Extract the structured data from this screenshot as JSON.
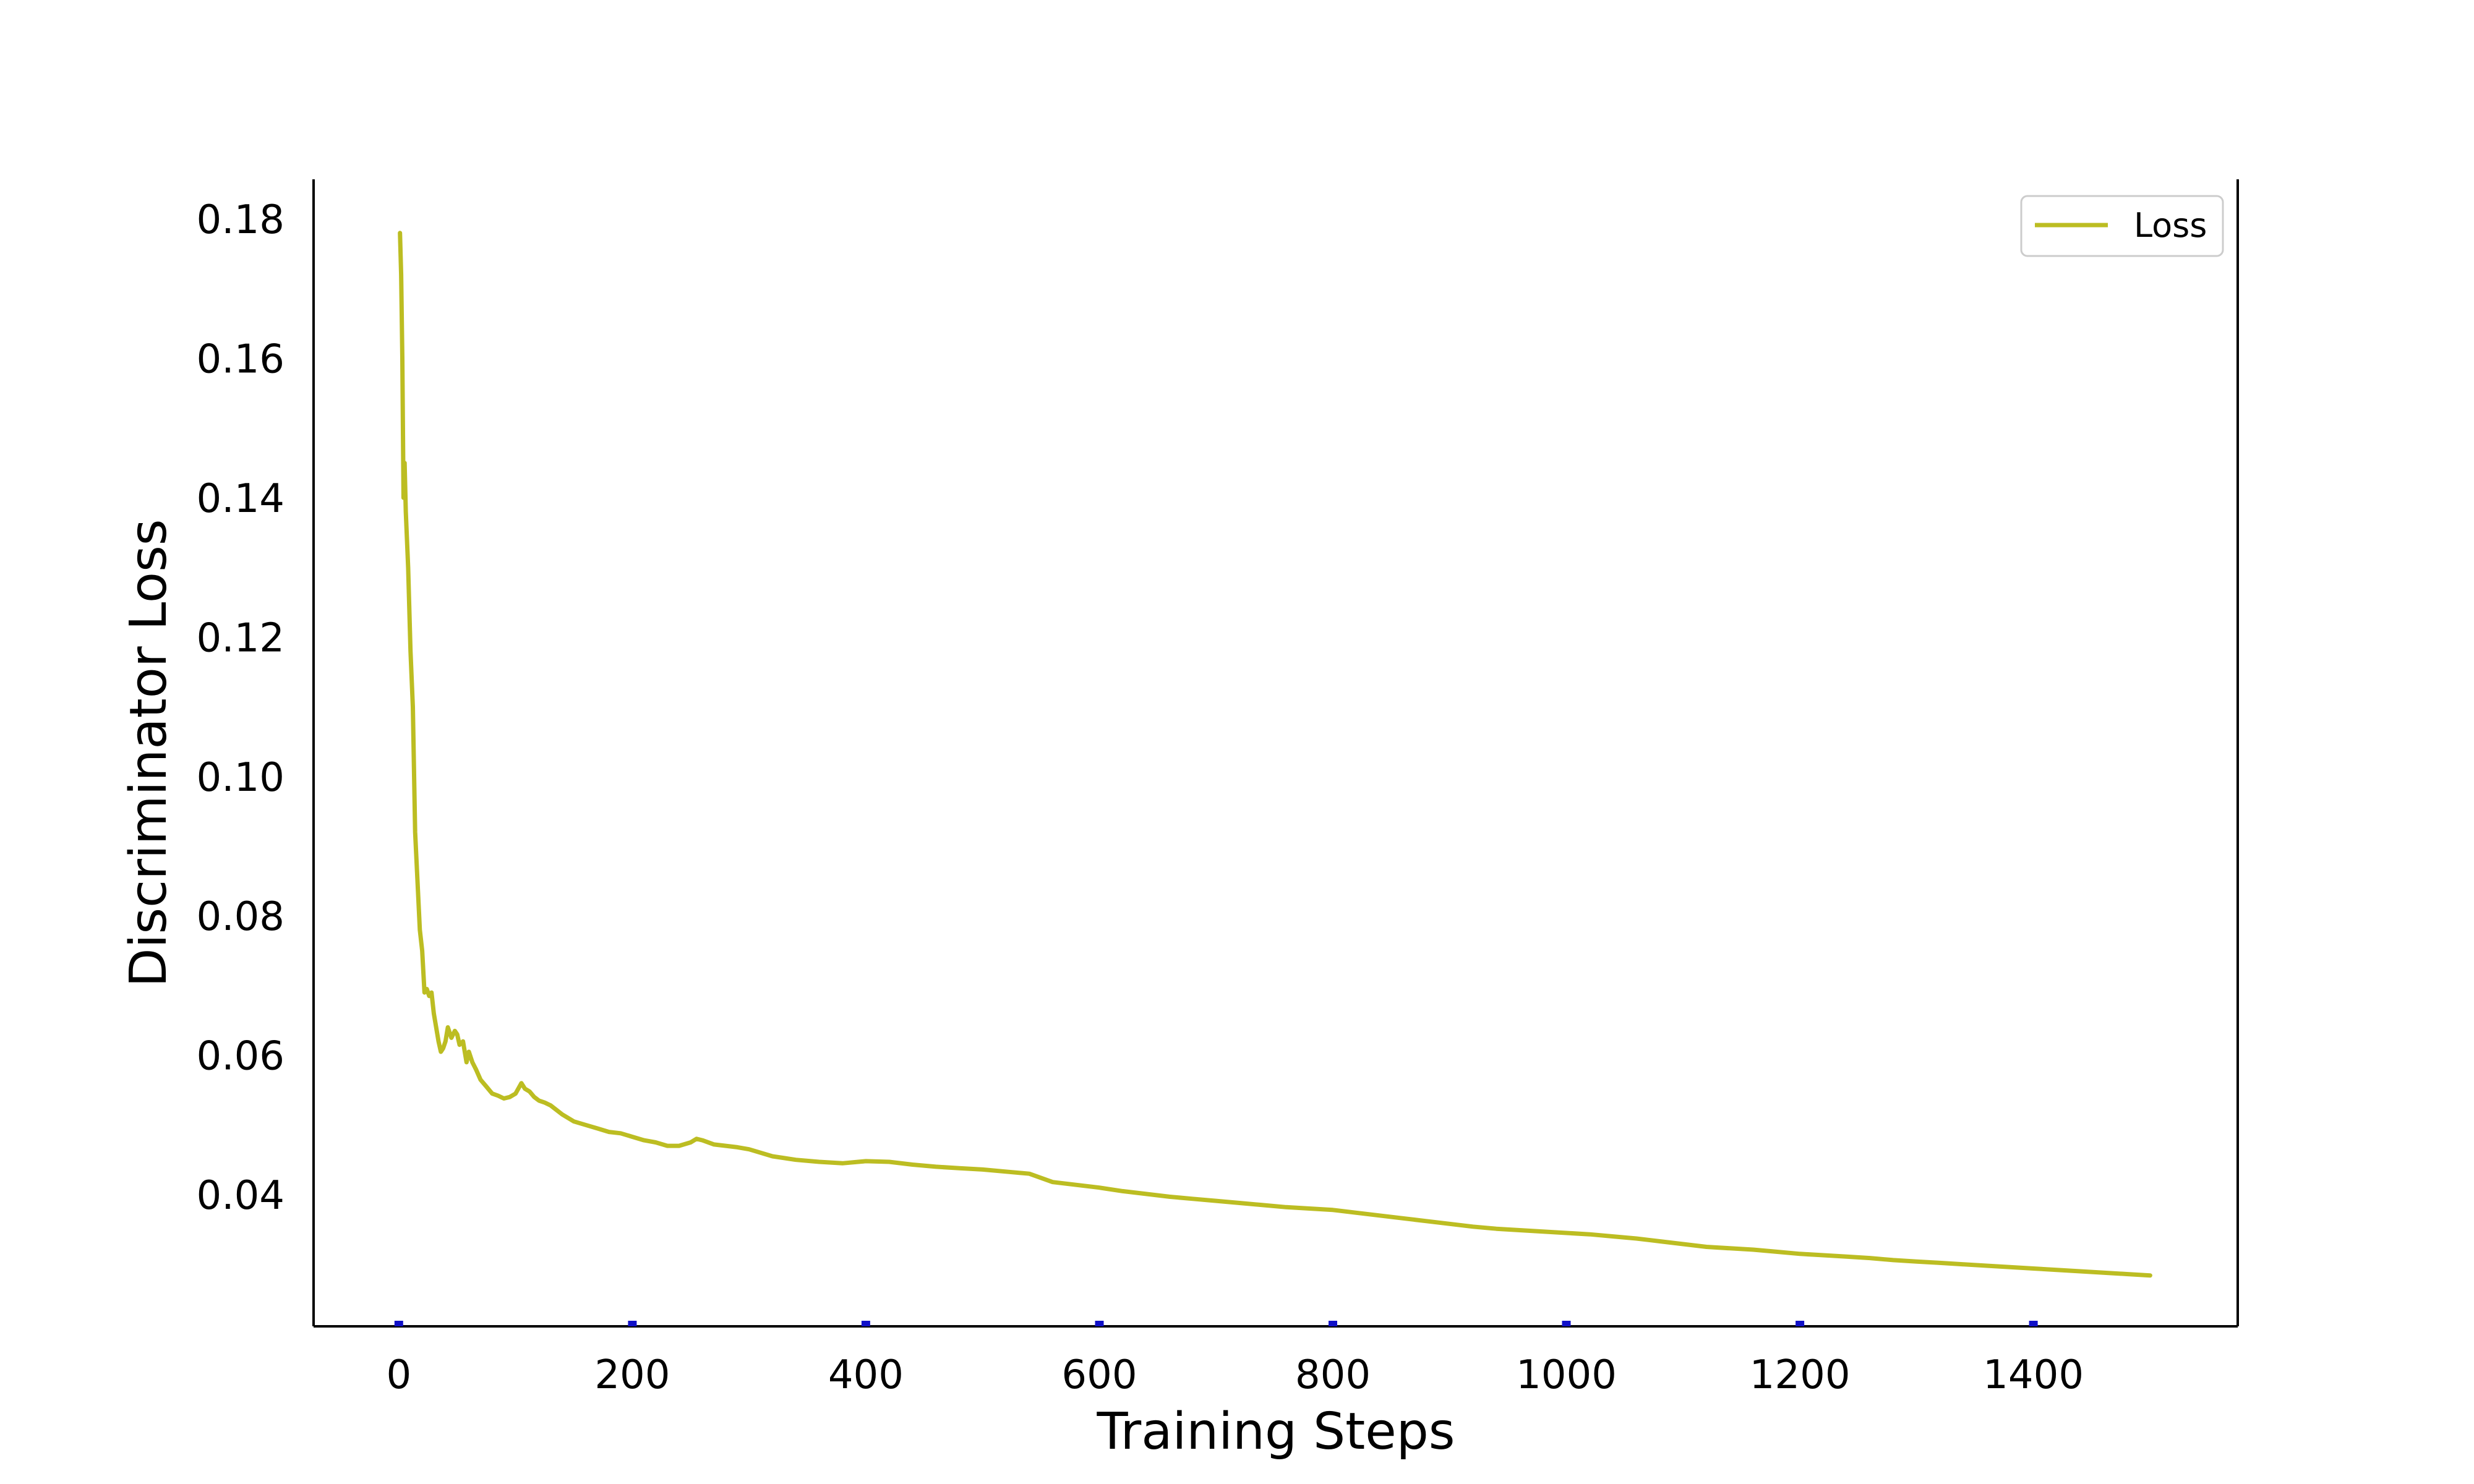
{
  "chart_data": {
    "type": "line",
    "title": "",
    "xlabel": "Training Steps",
    "ylabel": "Discriminator Loss",
    "xlim": [
      -73,
      1575
    ],
    "ylim": [
      0.0211,
      0.1857
    ],
    "xticks": [
      0,
      200,
      400,
      600,
      800,
      1000,
      1200,
      1400
    ],
    "xtick_labels": [
      "0",
      "200",
      "400",
      "600",
      "800",
      "1000",
      "1200",
      "1400"
    ],
    "yticks": [
      0.04,
      0.06,
      0.08,
      0.1,
      0.12,
      0.14,
      0.16,
      0.18
    ],
    "ytick_labels": [
      "0.04",
      "0.06",
      "0.08",
      "0.10",
      "0.12",
      "0.14",
      "0.16",
      "0.18"
    ],
    "grid": false,
    "legend_position": "top-right",
    "tick_mark_color": "#1010c8",
    "series": [
      {
        "name": "Loss",
        "color": "#bcbd22",
        "x": [
          1,
          2,
          3,
          4,
          5,
          6,
          8,
          10,
          12,
          14,
          16,
          18,
          20,
          22,
          24,
          26,
          28,
          30,
          32,
          34,
          36,
          38,
          40,
          42,
          45,
          48,
          50,
          52,
          55,
          58,
          60,
          63,
          66,
          70,
          75,
          80,
          85,
          90,
          95,
          100,
          105,
          108,
          112,
          116,
          120,
          125,
          130,
          140,
          150,
          160,
          170,
          180,
          190,
          200,
          210,
          220,
          230,
          240,
          250,
          255,
          260,
          270,
          280,
          290,
          300,
          320,
          340,
          360,
          380,
          400,
          420,
          440,
          460,
          480,
          500,
          520,
          540,
          560,
          580,
          600,
          620,
          640,
          660,
          680,
          700,
          720,
          740,
          760,
          780,
          800,
          820,
          840,
          860,
          880,
          900,
          920,
          940,
          960,
          980,
          1000,
          1020,
          1040,
          1060,
          1080,
          1100,
          1120,
          1140,
          1160,
          1180,
          1200,
          1220,
          1240,
          1260,
          1280,
          1300,
          1320,
          1340,
          1360,
          1380,
          1400,
          1420,
          1440,
          1460,
          1480,
          1500
        ],
        "values": [
          0.178,
          0.172,
          0.16,
          0.14,
          0.145,
          0.138,
          0.13,
          0.118,
          0.11,
          0.092,
          0.085,
          0.078,
          0.075,
          0.069,
          0.0695,
          0.0685,
          0.069,
          0.066,
          0.064,
          0.062,
          0.0605,
          0.061,
          0.062,
          0.064,
          0.0625,
          0.0635,
          0.063,
          0.0615,
          0.062,
          0.059,
          0.0605,
          0.059,
          0.058,
          0.0565,
          0.0555,
          0.0545,
          0.0542,
          0.0538,
          0.054,
          0.0545,
          0.056,
          0.0552,
          0.0548,
          0.054,
          0.0535,
          0.0532,
          0.0528,
          0.0515,
          0.0505,
          0.05,
          0.0495,
          0.049,
          0.0488,
          0.0483,
          0.0478,
          0.0475,
          0.047,
          0.047,
          0.0475,
          0.048,
          0.0478,
          0.0472,
          0.047,
          0.0468,
          0.0465,
          0.0455,
          0.045,
          0.0447,
          0.0445,
          0.0448,
          0.0447,
          0.0443,
          0.044,
          0.0438,
          0.0436,
          0.0433,
          0.043,
          0.0418,
          0.0414,
          0.041,
          0.0405,
          0.0401,
          0.0397,
          0.0394,
          0.0391,
          0.0388,
          0.0385,
          0.0382,
          0.038,
          0.0378,
          0.0374,
          0.037,
          0.0366,
          0.0362,
          0.0358,
          0.0354,
          0.0351,
          0.0349,
          0.0347,
          0.0345,
          0.0343,
          0.034,
          0.0337,
          0.0333,
          0.0329,
          0.0325,
          0.0323,
          0.0321,
          0.0318,
          0.0315,
          0.0313,
          0.0311,
          0.0309,
          0.0306,
          0.0304,
          0.0302,
          0.03,
          0.0298,
          0.0296,
          0.0294,
          0.0292,
          0.029,
          0.0288,
          0.0286,
          0.0284
        ]
      }
    ]
  }
}
